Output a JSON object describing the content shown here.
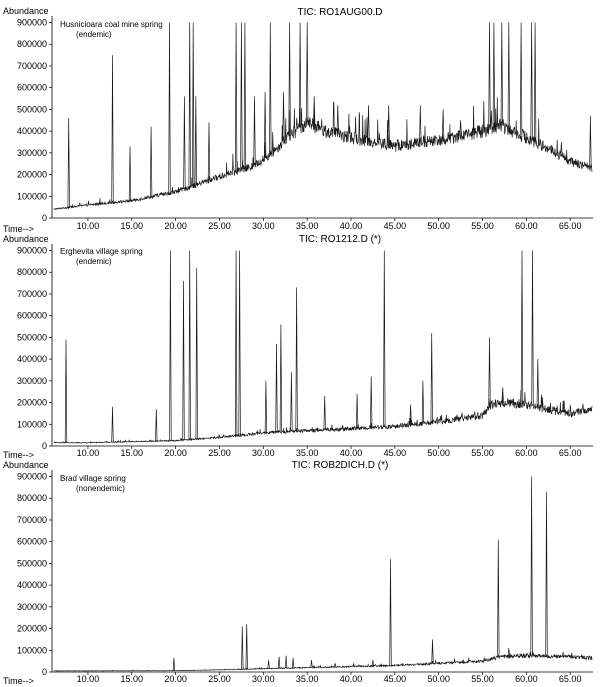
{
  "chart_data": [
    {
      "type": "line",
      "title": "TIC: RO1AUG00.D",
      "ylabel": "Abundance",
      "xlabel": "Time-->",
      "annotation": [
        "Husnicioara coal mine spring",
        "(endemic)"
      ],
      "yticks": [
        0,
        100000,
        200000,
        300000,
        400000,
        500000,
        600000,
        700000,
        800000,
        900000
      ],
      "xticks": [
        10,
        15,
        20,
        25,
        30,
        35,
        40,
        45,
        50,
        55,
        60,
        65
      ],
      "xtick_labels": [
        "10.00",
        "15.00",
        "20.00",
        "25.00",
        "30.00",
        "35.00",
        "40.00",
        "45.00",
        "50.00",
        "55.00",
        "60.00",
        "65.00"
      ],
      "xlim": [
        5.9,
        67.6
      ],
      "ylim": [
        0,
        930000
      ],
      "baseline": [
        [
          6,
          40000
        ],
        [
          10,
          60000
        ],
        [
          15,
          80000
        ],
        [
          20,
          120000
        ],
        [
          25,
          190000
        ],
        [
          29,
          240000
        ],
        [
          31,
          300000
        ],
        [
          33,
          380000
        ],
        [
          35,
          440000
        ],
        [
          37,
          400000
        ],
        [
          40,
          370000
        ],
        [
          45,
          330000
        ],
        [
          50,
          360000
        ],
        [
          55,
          400000
        ],
        [
          57,
          430000
        ],
        [
          60,
          370000
        ],
        [
          62,
          330000
        ],
        [
          65,
          260000
        ],
        [
          67.5,
          230000
        ]
      ],
      "peaks": [
        [
          7.8,
          460000
        ],
        [
          12.8,
          750000
        ],
        [
          14.8,
          330000
        ],
        [
          17.2,
          420000
        ],
        [
          19.3,
          900000
        ],
        [
          21.0,
          560000
        ],
        [
          21.6,
          900000
        ],
        [
          22.0,
          900000
        ],
        [
          22.3,
          560000
        ],
        [
          23.8,
          440000
        ],
        [
          26.9,
          900000
        ],
        [
          27.5,
          900000
        ],
        [
          27.9,
          900000
        ],
        [
          29.0,
          560000
        ],
        [
          30.2,
          580000
        ],
        [
          30.8,
          900000
        ],
        [
          32.3,
          580000
        ],
        [
          33.0,
          900000
        ],
        [
          34.2,
          900000
        ],
        [
          35.0,
          900000
        ],
        [
          35.8,
          560000
        ],
        [
          38.5,
          520000
        ],
        [
          42.0,
          520000
        ],
        [
          44.3,
          520000
        ],
        [
          47.9,
          520000
        ],
        [
          50.5,
          500000
        ],
        [
          52.5,
          450000
        ],
        [
          55.8,
          900000
        ],
        [
          56.3,
          900000
        ],
        [
          57.2,
          900000
        ],
        [
          58.0,
          900000
        ],
        [
          59.4,
          900000
        ],
        [
          60.6,
          900000
        ],
        [
          61.0,
          900000
        ],
        [
          64.0,
          350000
        ],
        [
          67.3,
          470000
        ]
      ]
    },
    {
      "type": "line",
      "title": "TIC: RO1212.D (*)",
      "ylabel": "Abundance",
      "xlabel": "Time-->",
      "annotation": [
        "Erghevita village spring",
        "(endemic)"
      ],
      "yticks": [
        0,
        100000,
        200000,
        300000,
        400000,
        500000,
        600000,
        700000,
        800000,
        900000
      ],
      "xticks": [
        10,
        15,
        20,
        25,
        30,
        35,
        40,
        45,
        50,
        55,
        60,
        65
      ],
      "xtick_labels": [
        "10.00",
        "15.00",
        "20.00",
        "25.00",
        "30.00",
        "35.00",
        "40.00",
        "45.00",
        "50.00",
        "55.00",
        "60.00",
        "65.00"
      ],
      "xlim": [
        5.9,
        67.6
      ],
      "ylim": [
        0,
        930000
      ],
      "baseline": [
        [
          6,
          15000
        ],
        [
          10,
          15000
        ],
        [
          15,
          20000
        ],
        [
          20,
          25000
        ],
        [
          25,
          40000
        ],
        [
          30,
          60000
        ],
        [
          35,
          70000
        ],
        [
          40,
          80000
        ],
        [
          45,
          90000
        ],
        [
          50,
          110000
        ],
        [
          55,
          140000
        ],
        [
          56,
          190000
        ],
        [
          58,
          200000
        ],
        [
          60,
          190000
        ],
        [
          62,
          170000
        ],
        [
          65,
          150000
        ],
        [
          67.5,
          170000
        ]
      ],
      "peaks": [
        [
          7.5,
          490000
        ],
        [
          12.8,
          180000
        ],
        [
          17.8,
          170000
        ],
        [
          19.4,
          900000
        ],
        [
          20.9,
          760000
        ],
        [
          21.6,
          900000
        ],
        [
          22.4,
          820000
        ],
        [
          26.9,
          900000
        ],
        [
          27.3,
          900000
        ],
        [
          30.3,
          300000
        ],
        [
          31.5,
          470000
        ],
        [
          32.0,
          560000
        ],
        [
          33.2,
          340000
        ],
        [
          33.8,
          730000
        ],
        [
          37.0,
          230000
        ],
        [
          40.7,
          240000
        ],
        [
          42.3,
          320000
        ],
        [
          43.8,
          900000
        ],
        [
          46.8,
          190000
        ],
        [
          48.2,
          300000
        ],
        [
          49.2,
          520000
        ],
        [
          55.8,
          500000
        ],
        [
          57.3,
          270000
        ],
        [
          59.5,
          900000
        ],
        [
          60.7,
          900000
        ],
        [
          61.3,
          400000
        ],
        [
          64.3,
          210000
        ]
      ]
    },
    {
      "type": "line",
      "title": "TIC: ROB2DICH.D (*)",
      "ylabel": "Abundance",
      "xlabel": "Time-->",
      "annotation": [
        "Brad village spring",
        "(nonendemic)"
      ],
      "yticks": [
        0,
        100000,
        200000,
        300000,
        400000,
        500000,
        600000,
        700000,
        800000,
        900000
      ],
      "xticks": [
        10,
        15,
        20,
        25,
        30,
        35,
        40,
        45,
        50,
        55,
        60,
        65
      ],
      "xtick_labels": [
        "10.00",
        "15.00",
        "20.00",
        "25.00",
        "30.00",
        "35.00",
        "40.00",
        "45.00",
        "50.00",
        "55.00",
        "60.00",
        "65.00"
      ],
      "xlim": [
        5.9,
        67.6
      ],
      "ylim": [
        0,
        930000
      ],
      "baseline": [
        [
          6,
          5000
        ],
        [
          20,
          6000
        ],
        [
          25,
          10000
        ],
        [
          30,
          15000
        ],
        [
          35,
          20000
        ],
        [
          40,
          25000
        ],
        [
          45,
          30000
        ],
        [
          50,
          40000
        ],
        [
          55,
          50000
        ],
        [
          57,
          70000
        ],
        [
          60,
          75000
        ],
        [
          65,
          70000
        ],
        [
          67.5,
          65000
        ]
      ],
      "peaks": [
        [
          19.8,
          65000
        ],
        [
          27.6,
          210000
        ],
        [
          28.1,
          220000
        ],
        [
          30.6,
          55000
        ],
        [
          31.8,
          70000
        ],
        [
          32.6,
          75000
        ],
        [
          33.4,
          65000
        ],
        [
          35.5,
          55000
        ],
        [
          38.2,
          40000
        ],
        [
          40.3,
          40000
        ],
        [
          42.5,
          55000
        ],
        [
          44.5,
          520000
        ],
        [
          49.3,
          150000
        ],
        [
          52.8,
          55000
        ],
        [
          56.8,
          610000
        ],
        [
          58.0,
          110000
        ],
        [
          60.6,
          900000
        ],
        [
          62.3,
          830000
        ]
      ]
    }
  ]
}
